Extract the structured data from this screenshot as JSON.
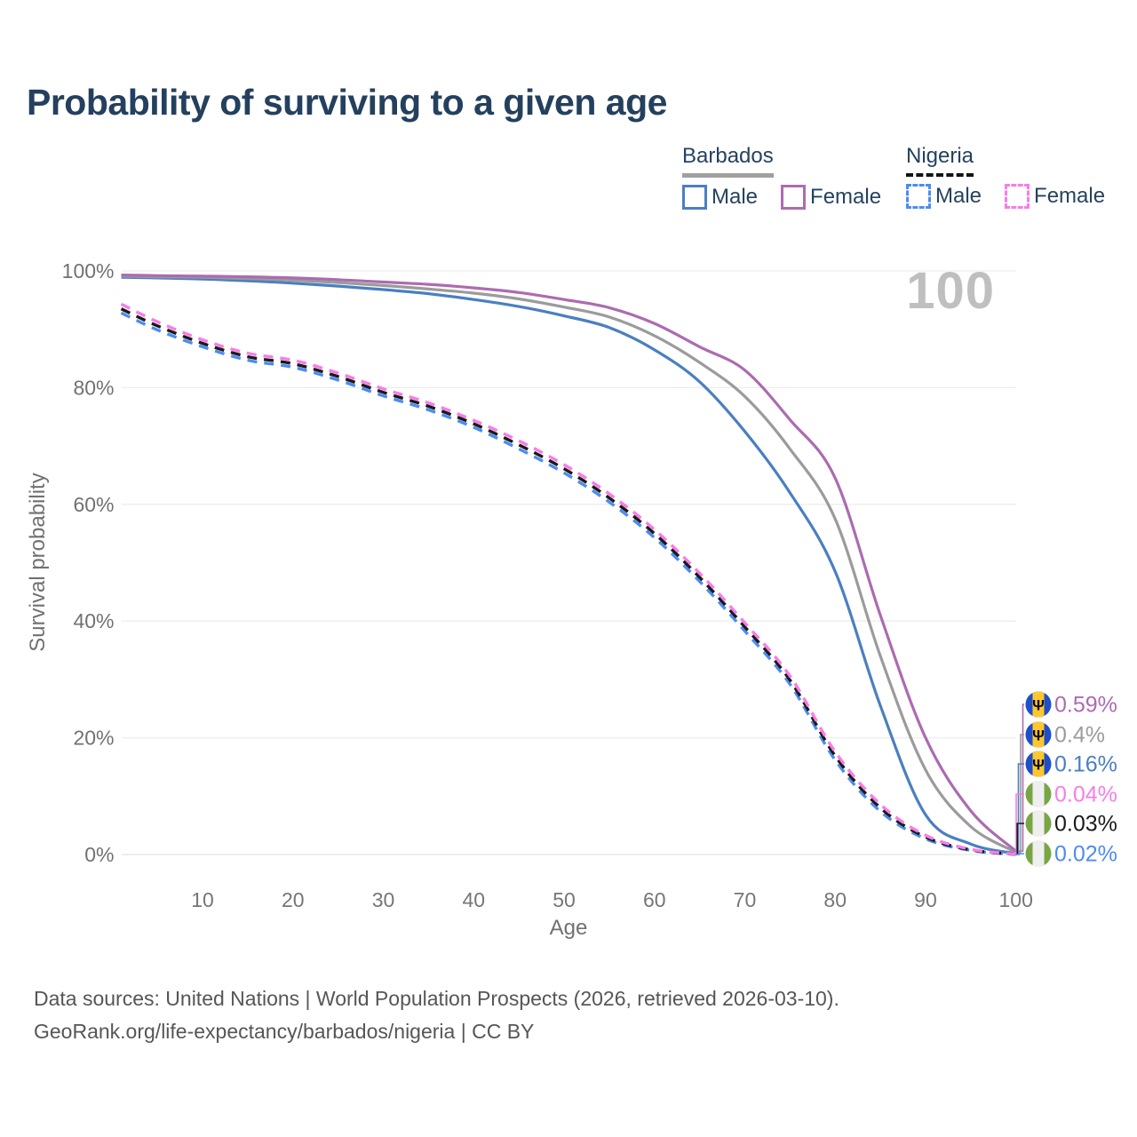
{
  "title": "Probability of surviving to a given age",
  "watermark": "100",
  "legend": {
    "groups": [
      {
        "name": "Barbados",
        "line_style": "solid",
        "underline_color": "#a0a0a0",
        "items": [
          {
            "label": "Male",
            "color": "#4a7fc1"
          },
          {
            "label": "Female",
            "color": "#ac6bb0"
          }
        ]
      },
      {
        "name": "Nigeria",
        "line_style": "dashed",
        "underline_color": "#141414",
        "items": [
          {
            "label": "Male",
            "color": "#4d8cf0"
          },
          {
            "label": "Female",
            "color": "#fa7ce5"
          }
        ]
      }
    ]
  },
  "chart_data": {
    "type": "line",
    "title": "Probability of surviving to a given age",
    "xlabel": "Age",
    "ylabel": "Survival probability",
    "xlim": [
      1,
      100
    ],
    "ylim": [
      0,
      100
    ],
    "grid": "horizontal",
    "x_ticks": [
      10,
      20,
      30,
      40,
      50,
      60,
      70,
      80,
      90,
      100
    ],
    "y_ticks": [
      {
        "v": 0,
        "label": "0%"
      },
      {
        "v": 20,
        "label": "20%"
      },
      {
        "v": 40,
        "label": "40%"
      },
      {
        "v": 60,
        "label": "60%"
      },
      {
        "v": 80,
        "label": "80%"
      },
      {
        "v": 100,
        "label": "100%"
      }
    ],
    "x": [
      1,
      5,
      10,
      15,
      20,
      25,
      30,
      35,
      40,
      45,
      50,
      55,
      60,
      65,
      70,
      75,
      80,
      85,
      90,
      95,
      100
    ],
    "series": [
      {
        "name": "Barbados Female",
        "country": "Barbados",
        "sex": "Female",
        "style": "solid",
        "color": "#ac6bb0",
        "flag": "barbados",
        "end_label": "0.59%",
        "values": [
          99.3,
          99.2,
          99.1,
          99.0,
          98.8,
          98.5,
          98.1,
          97.7,
          97.1,
          96.3,
          95.1,
          93.7,
          91.0,
          87.0,
          83.0,
          74.5,
          64.5,
          41.0,
          20.0,
          7.5,
          0.59
        ]
      },
      {
        "name": "Barbados Both sexes",
        "country": "Barbados",
        "sex": "Both",
        "style": "solid",
        "color": "#9b9b9b",
        "flag": "barbados",
        "end_label": "0.4%",
        "values": [
          99.1,
          99.0,
          98.9,
          98.7,
          98.4,
          98.0,
          97.5,
          96.9,
          96.2,
          95.2,
          93.8,
          92.1,
          88.9,
          84.3,
          78.5,
          69.5,
          57.5,
          34.0,
          14.5,
          4.8,
          0.4
        ]
      },
      {
        "name": "Barbados Male",
        "country": "Barbados",
        "sex": "Male",
        "style": "solid",
        "color": "#4a7fc1",
        "flag": "barbados",
        "end_label": "0.16%",
        "values": [
          98.9,
          98.8,
          98.6,
          98.3,
          97.9,
          97.4,
          96.8,
          96.1,
          95.1,
          93.9,
          92.3,
          90.3,
          86.5,
          81.0,
          72.5,
          62.0,
          48.5,
          25.5,
          6.8,
          1.8,
          0.16
        ]
      },
      {
        "name": "Nigeria Female",
        "country": "Nigeria",
        "sex": "Female",
        "style": "dashed",
        "color": "#fa7ce5",
        "flag": "nigeria",
        "end_label": "0.04%",
        "values": [
          94.3,
          91.3,
          88.2,
          85.9,
          84.7,
          82.5,
          79.8,
          77.4,
          74.4,
          70.9,
          66.8,
          61.8,
          55.7,
          48.2,
          39.7,
          30.6,
          17.6,
          8.6,
          3.3,
          0.9,
          0.04
        ]
      },
      {
        "name": "Nigeria Both sexes",
        "country": "Nigeria",
        "sex": "Both",
        "style": "dashed",
        "color": "#1a1a1a",
        "flag": "nigeria",
        "end_label": "0.03%",
        "values": [
          93.5,
          90.6,
          87.6,
          85.3,
          84.1,
          81.9,
          79.2,
          76.8,
          73.8,
          70.2,
          66.1,
          61.1,
          55.0,
          47.5,
          39.0,
          29.9,
          16.9,
          8.0,
          3.0,
          0.8,
          0.03
        ]
      },
      {
        "name": "Nigeria Male",
        "country": "Nigeria",
        "sex": "Male",
        "style": "dashed",
        "color": "#4d8cf0",
        "flag": "nigeria",
        "end_label": "0.02%",
        "values": [
          92.8,
          89.9,
          87.0,
          84.7,
          83.5,
          81.3,
          78.6,
          76.2,
          73.2,
          69.5,
          65.4,
          60.4,
          54.3,
          46.8,
          38.3,
          29.2,
          16.2,
          7.4,
          2.7,
          0.7,
          0.02
        ]
      }
    ],
    "flag_colors": {
      "barbados": {
        "side": "#1e4fc8",
        "center": "#ffc72e",
        "emblem": "Ψ"
      },
      "nigeria": {
        "side": "#78a644",
        "center": "#efefef"
      }
    }
  },
  "footer": {
    "line1": "Data sources: United Nations | World Population Prospects (2026, retrieved 2026-03-10).",
    "line2": "GeoRank.org/life-expectancy/barbados/nigeria | CC BY"
  }
}
